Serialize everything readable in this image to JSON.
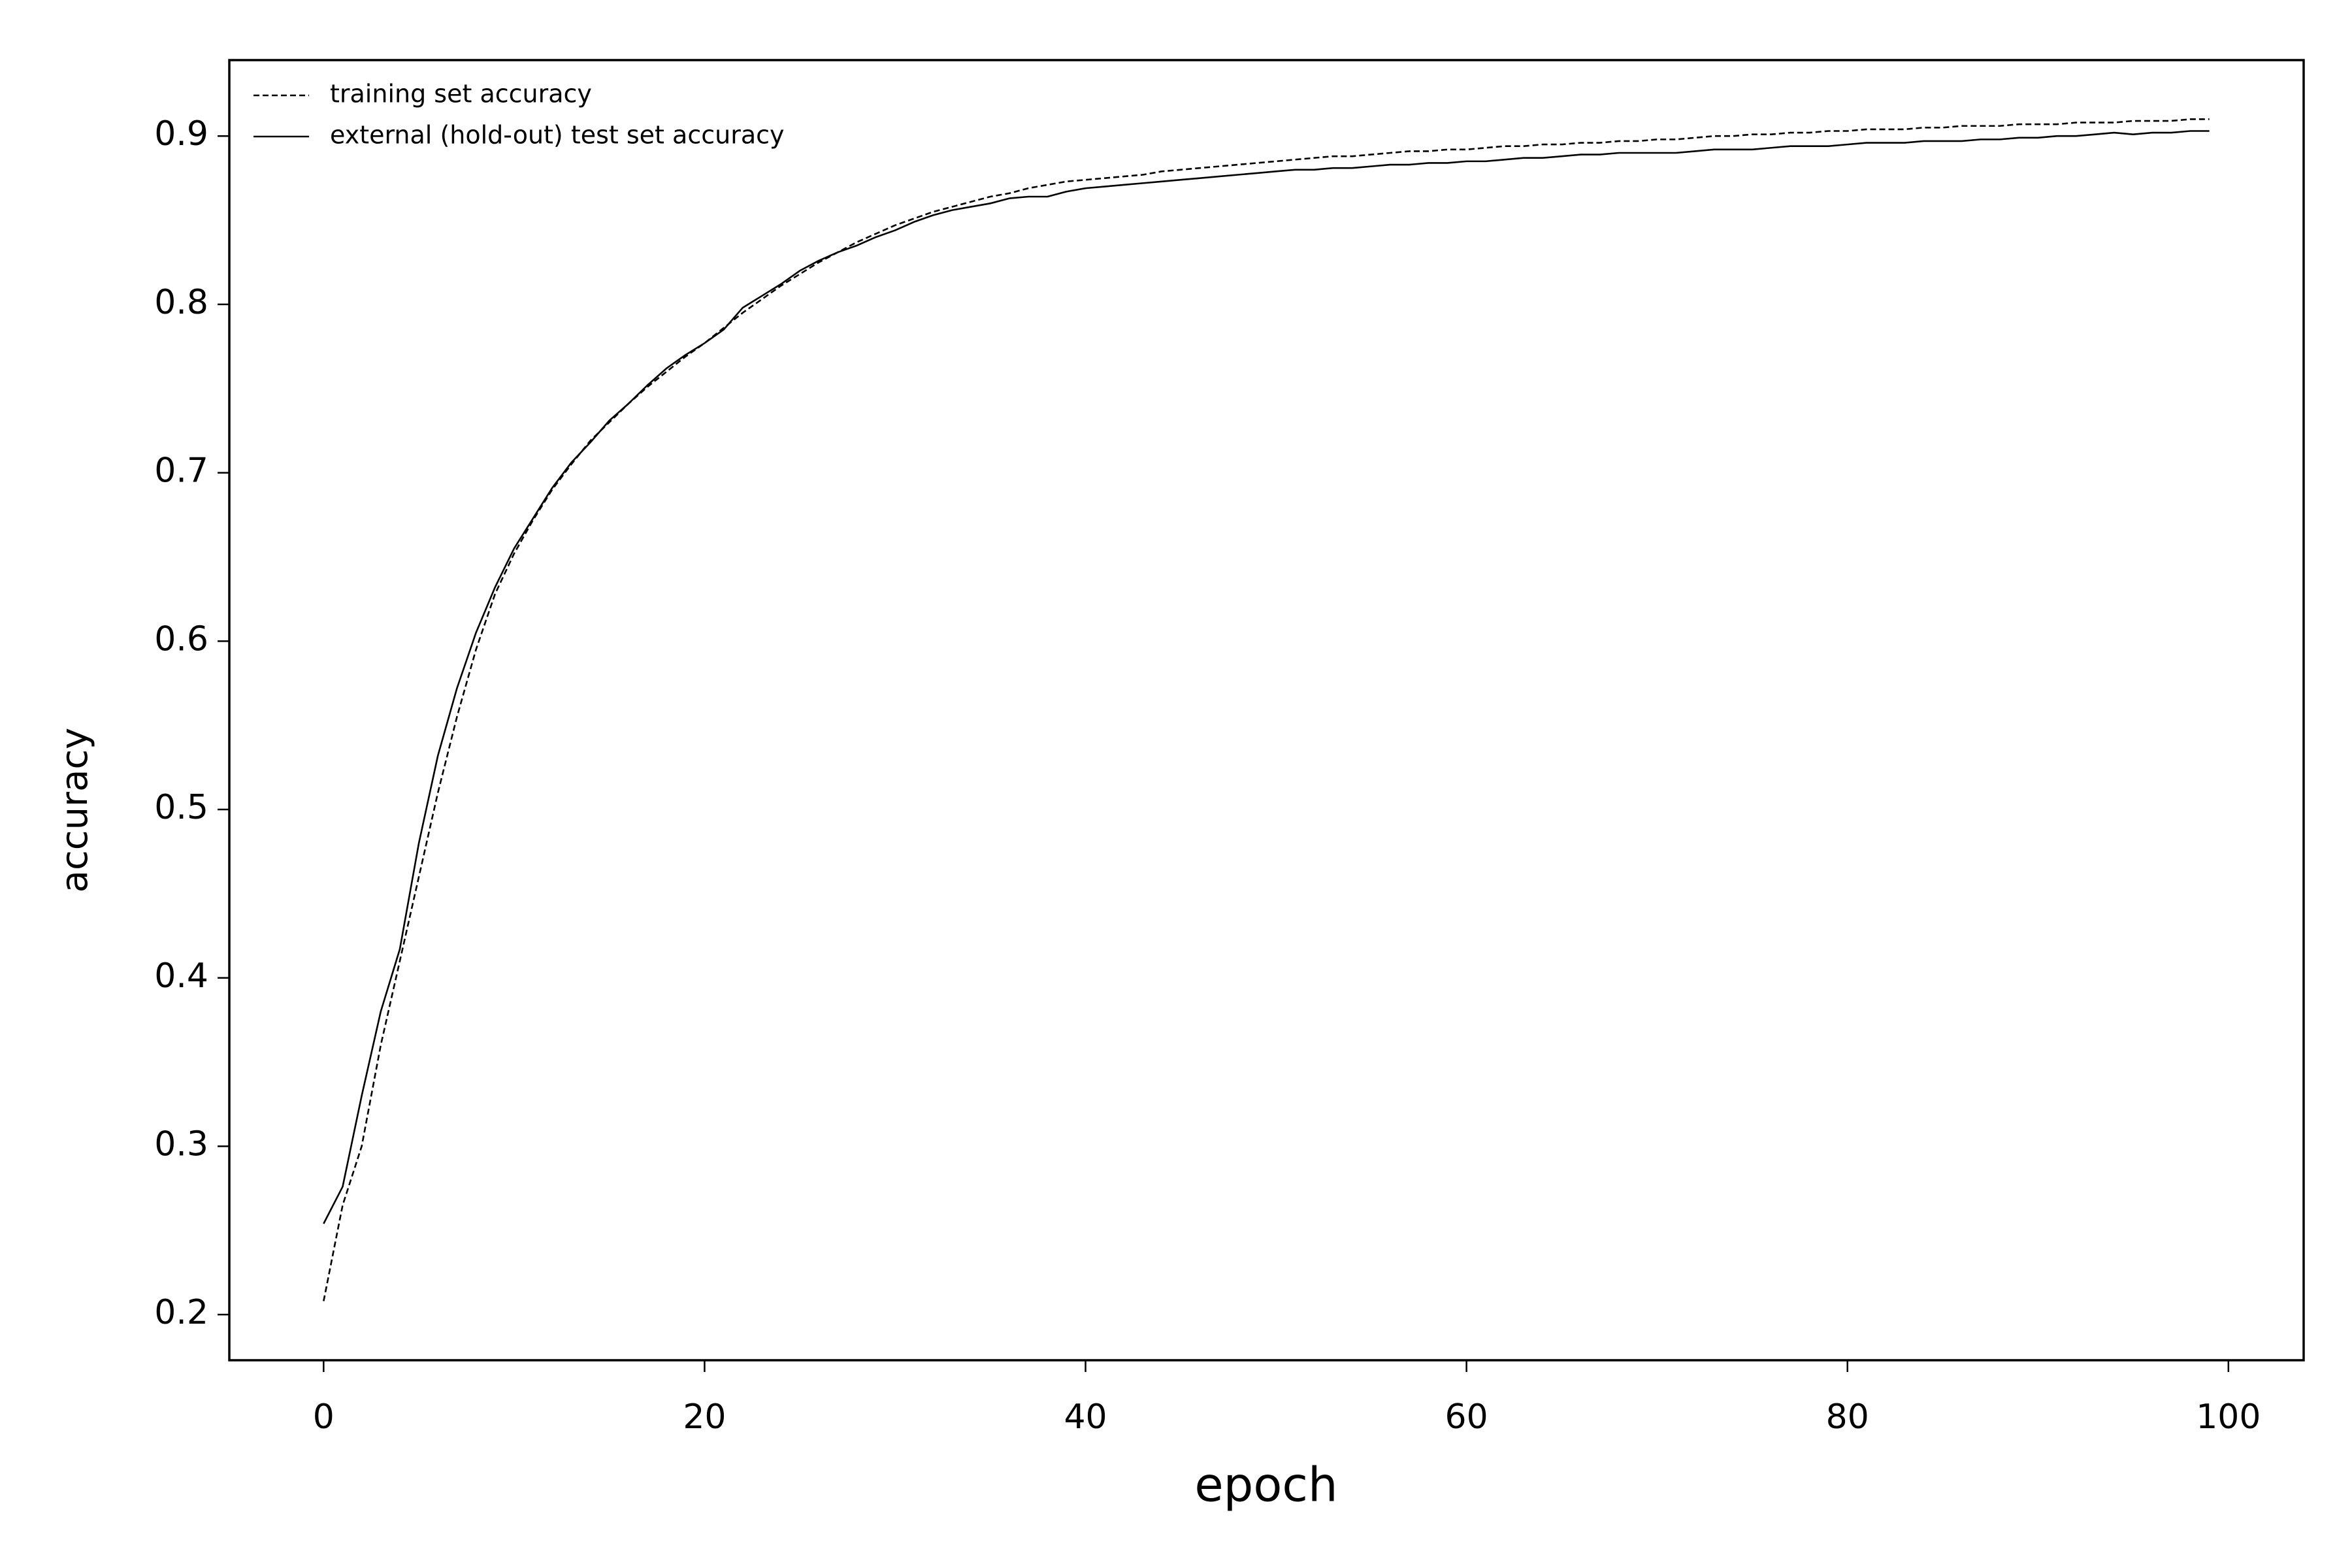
{
  "chart_data": {
    "type": "line",
    "x_label": "epoch",
    "y_label": "accuracy",
    "x": [
      0,
      1,
      2,
      3,
      4,
      5,
      6,
      7,
      8,
      9,
      10,
      11,
      12,
      13,
      14,
      15,
      16,
      17,
      18,
      19,
      20,
      21,
      22,
      23,
      24,
      25,
      26,
      27,
      28,
      29,
      30,
      31,
      32,
      33,
      34,
      35,
      36,
      37,
      38,
      39,
      40,
      41,
      42,
      43,
      44,
      45,
      46,
      47,
      48,
      49,
      50,
      51,
      52,
      53,
      54,
      55,
      56,
      57,
      58,
      59,
      60,
      61,
      62,
      63,
      64,
      65,
      66,
      67,
      68,
      69,
      70,
      71,
      72,
      73,
      74,
      75,
      76,
      77,
      78,
      79,
      80,
      81,
      82,
      83,
      84,
      85,
      86,
      87,
      88,
      89,
      90,
      91,
      92,
      93,
      94,
      95,
      96,
      97,
      98,
      99
    ],
    "series": [
      {
        "name": "training set accuracy",
        "color": "#000000",
        "dash": "dashed",
        "values": [
          0.208,
          0.265,
          0.3,
          0.36,
          0.41,
          0.46,
          0.51,
          0.555,
          0.595,
          0.628,
          0.652,
          0.672,
          0.69,
          0.705,
          0.719,
          0.73,
          0.741,
          0.751,
          0.76,
          0.769,
          0.777,
          0.786,
          0.795,
          0.803,
          0.811,
          0.818,
          0.825,
          0.831,
          0.837,
          0.842,
          0.847,
          0.851,
          0.855,
          0.858,
          0.861,
          0.864,
          0.866,
          0.869,
          0.871,
          0.873,
          0.874,
          0.875,
          0.876,
          0.877,
          0.879,
          0.88,
          0.881,
          0.882,
          0.883,
          0.884,
          0.885,
          0.886,
          0.887,
          0.888,
          0.888,
          0.889,
          0.89,
          0.891,
          0.891,
          0.892,
          0.892,
          0.893,
          0.894,
          0.894,
          0.895,
          0.895,
          0.896,
          0.896,
          0.897,
          0.897,
          0.898,
          0.898,
          0.899,
          0.9,
          0.9,
          0.901,
          0.901,
          0.902,
          0.902,
          0.903,
          0.903,
          0.904,
          0.904,
          0.904,
          0.905,
          0.905,
          0.906,
          0.906,
          0.906,
          0.907,
          0.907,
          0.907,
          0.908,
          0.908,
          0.908,
          0.909,
          0.909,
          0.909,
          0.91,
          0.91
        ]
      },
      {
        "name": "external (hold-out) test set accuracy",
        "color": "#000000",
        "dash": "solid",
        "values": [
          0.254,
          0.276,
          0.33,
          0.38,
          0.417,
          0.48,
          0.532,
          0.572,
          0.605,
          0.632,
          0.655,
          0.673,
          0.691,
          0.706,
          0.718,
          0.731,
          0.741,
          0.752,
          0.762,
          0.77,
          0.777,
          0.785,
          0.798,
          0.805,
          0.812,
          0.82,
          0.826,
          0.831,
          0.835,
          0.84,
          0.844,
          0.849,
          0.853,
          0.856,
          0.858,
          0.86,
          0.863,
          0.864,
          0.864,
          0.867,
          0.869,
          0.87,
          0.871,
          0.872,
          0.873,
          0.874,
          0.875,
          0.876,
          0.877,
          0.878,
          0.879,
          0.88,
          0.88,
          0.881,
          0.881,
          0.882,
          0.883,
          0.883,
          0.884,
          0.884,
          0.885,
          0.885,
          0.886,
          0.887,
          0.887,
          0.888,
          0.889,
          0.889,
          0.89,
          0.89,
          0.89,
          0.89,
          0.891,
          0.892,
          0.892,
          0.892,
          0.893,
          0.894,
          0.894,
          0.894,
          0.895,
          0.896,
          0.896,
          0.896,
          0.897,
          0.897,
          0.897,
          0.898,
          0.898,
          0.899,
          0.899,
          0.9,
          0.9,
          0.901,
          0.902,
          0.901,
          0.902,
          0.902,
          0.903,
          0.903
        ]
      }
    ],
    "xlim": [
      -4.95,
      103.95
    ],
    "xticks": [
      0,
      20,
      40,
      60,
      80,
      100
    ],
    "ylim": [
      0.1729,
      0.9451
    ],
    "yticks": [
      0.2,
      0.3,
      0.4,
      0.5,
      0.6,
      0.7,
      0.8,
      0.9
    ],
    "grid": false,
    "legend": "upper left"
  }
}
